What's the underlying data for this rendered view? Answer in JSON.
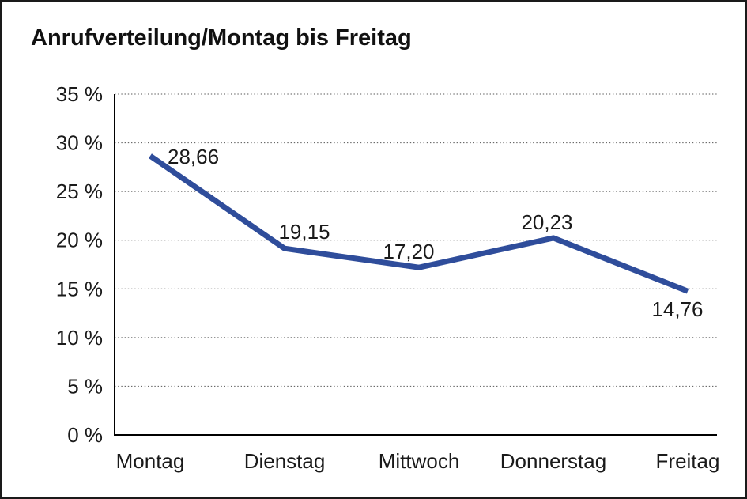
{
  "frame": {
    "background": "#ffffff",
    "border_color": "#1a1a1a"
  },
  "chart_data": {
    "type": "line",
    "title": "Anrufverteilung/Montag bis Freitag",
    "categories": [
      "Montag",
      "Dienstag",
      "Mittwoch",
      "Donnerstag",
      "Freitag"
    ],
    "values": [
      28.66,
      19.15,
      17.2,
      20.23,
      14.76
    ],
    "point_labels": [
      "28,66",
      "19,15",
      "17,20",
      "20,23",
      "14,76"
    ],
    "xlabel": "",
    "ylabel": "",
    "ylim": [
      0,
      35
    ],
    "ytick_step": 5,
    "ytick_labels": [
      "0 %",
      "5 %",
      "10 %",
      "15 %",
      "20 %",
      "25 %",
      "30 %",
      "35 %"
    ],
    "grid": {
      "horizontal": true,
      "style": "dotted",
      "color": "#555555"
    },
    "legend": {
      "visible": false
    },
    "line_color": "#2F4D9B",
    "axis_color": "#000000",
    "text_color": "#1a1a1a"
  }
}
